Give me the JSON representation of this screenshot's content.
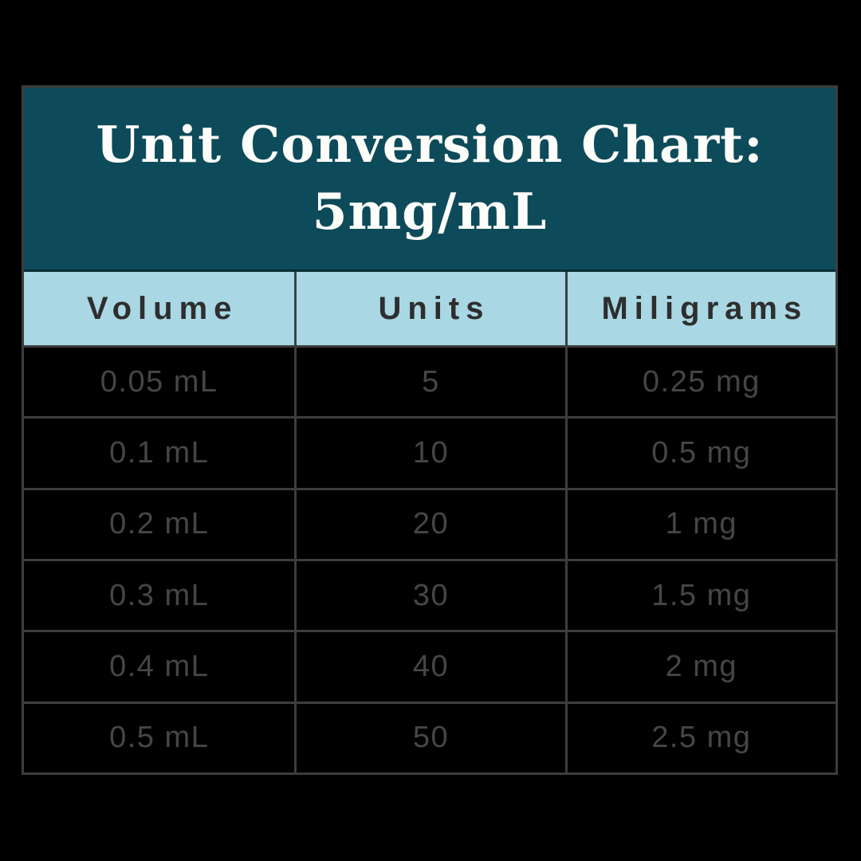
{
  "colors": {
    "page_bg": "#000000",
    "band_teal": "#0d4b5a",
    "band_separator": "#0a2d36",
    "header_blue": "#a9d8e4",
    "header_divider": "#34444a",
    "header_text": "#2e2e2e",
    "grid_line": "#3d3d3d",
    "cell_text": "#464646",
    "title_text": "#fdfdf9"
  },
  "title": {
    "line1": "Unit Conversion Chart:",
    "line2": "5mg/mL"
  },
  "table": {
    "columns": [
      "Volume",
      "Units",
      "Miligrams"
    ],
    "rows": [
      [
        "0.05 mL",
        "5",
        "0.25 mg"
      ],
      [
        "0.1 mL",
        "10",
        "0.5 mg"
      ],
      [
        "0.2 mL",
        "20",
        "1 mg"
      ],
      [
        "0.3 mL",
        "30",
        "1.5 mg"
      ],
      [
        "0.4 mL",
        "40",
        "2 mg"
      ],
      [
        "0.5 mL",
        "50",
        "2.5 mg"
      ]
    ]
  },
  "chart_data": {
    "type": "table",
    "title": "Unit Conversion Chart: 5mg/mL",
    "columns": [
      "Volume",
      "Units",
      "Miligrams"
    ],
    "rows": [
      [
        "0.05 mL",
        "5",
        "0.25 mg"
      ],
      [
        "0.1 mL",
        "10",
        "0.5 mg"
      ],
      [
        "0.2 mL",
        "20",
        "1 mg"
      ],
      [
        "0.3 mL",
        "30",
        "1.5 mg"
      ],
      [
        "0.4 mL",
        "40",
        "2 mg"
      ],
      [
        "0.5 mL",
        "50",
        "2.5 mg"
      ]
    ]
  }
}
